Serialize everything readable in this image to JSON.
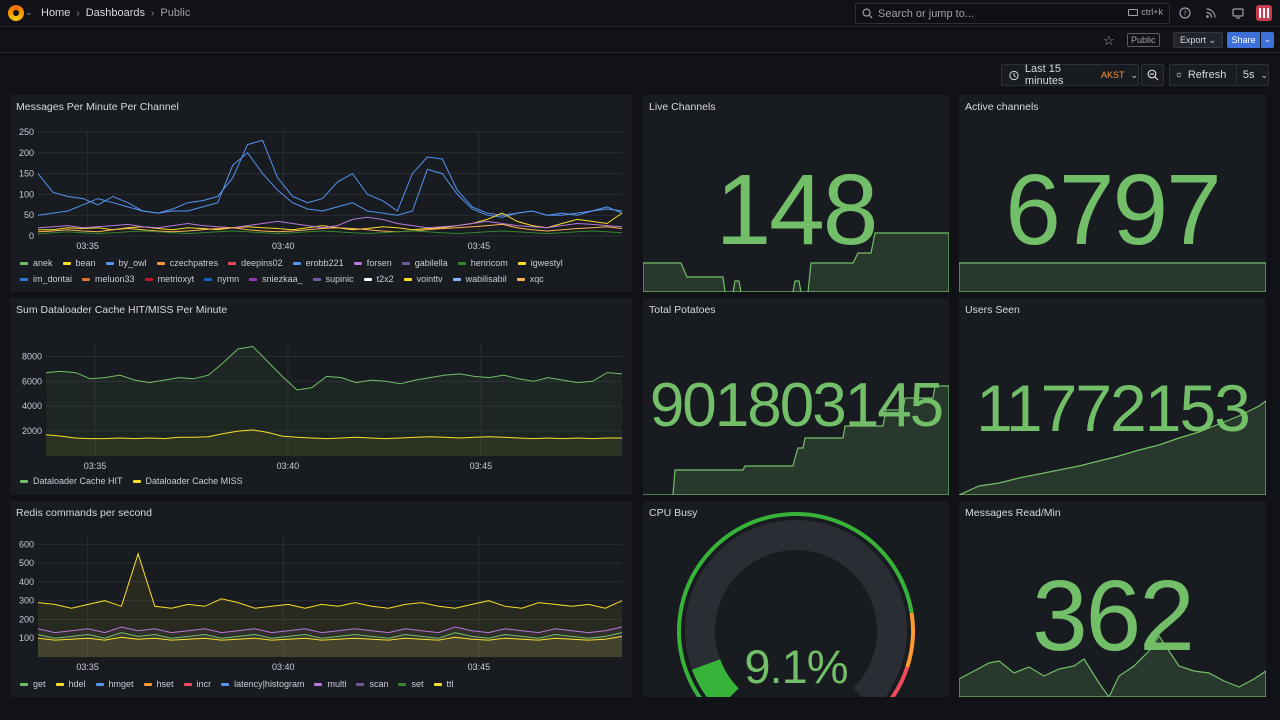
{
  "nav": {
    "breadcrumbs": [
      "Home",
      "Dashboards",
      "Public"
    ],
    "search_placeholder": "Search or jump to...",
    "search_shortcut": "ctrl+k"
  },
  "toolbar": {
    "public_tag": "Public",
    "export_label": "Export",
    "share_label": "Share",
    "time_range": "Last 15 minutes",
    "timezone": "AKST",
    "refresh_label": "Refresh",
    "refresh_interval": "5s"
  },
  "colors": {
    "stat_green": "#73bf69",
    "background": "#111217",
    "panel": "#181b1f"
  },
  "panels": {
    "messages": {
      "title": "Messages Per Minute Per Channel",
      "legend": [
        {
          "name": "anek",
          "color": "#73bf69"
        },
        {
          "name": "bean",
          "color": "#fade2a"
        },
        {
          "name": "by_owl",
          "color": "#5794f2"
        },
        {
          "name": "czechpatres",
          "color": "#ff9830"
        },
        {
          "name": "deepins02",
          "color": "#f2495c"
        },
        {
          "name": "erobb221",
          "color": "#5794f2"
        },
        {
          "name": "forsen",
          "color": "#b877d9"
        },
        {
          "name": "gabilella",
          "color": "#705da0"
        },
        {
          "name": "henricom",
          "color": "#37872d"
        },
        {
          "name": "igwestyl",
          "color": "#fade2a"
        },
        {
          "name": "im_dontai",
          "color": "#3274d9"
        },
        {
          "name": "meluon33",
          "color": "#e0752d"
        },
        {
          "name": "metrioxyt",
          "color": "#c4162a"
        },
        {
          "name": "nymn",
          "color": "#1f60c4"
        },
        {
          "name": "sniezkaa_",
          "color": "#8f3bb8"
        },
        {
          "name": "supinic",
          "color": "#705da0"
        },
        {
          "name": "t2x2",
          "color": "#ffffff"
        },
        {
          "name": "vointtv",
          "color": "#fade2a"
        },
        {
          "name": "wabilisabil",
          "color": "#8ab8ff"
        },
        {
          "name": "xqc",
          "color": "#ffb357"
        }
      ]
    },
    "cache": {
      "title": "Sum Dataloader Cache HIT/MISS Per Minute",
      "legend": [
        {
          "name": "Dataloader Cache HIT",
          "color": "#73bf69"
        },
        {
          "name": "Dataloader Cache MISS",
          "color": "#fade2a"
        }
      ]
    },
    "redis": {
      "title": "Redis commands per second",
      "legend": [
        {
          "name": "get",
          "color": "#73bf69"
        },
        {
          "name": "hdel",
          "color": "#fade2a"
        },
        {
          "name": "hmget",
          "color": "#5794f2"
        },
        {
          "name": "hset",
          "color": "#ff9830"
        },
        {
          "name": "incr",
          "color": "#f2495c"
        },
        {
          "name": "latency|histogram",
          "color": "#5794f2"
        },
        {
          "name": "multi",
          "color": "#b877d9"
        },
        {
          "name": "scan",
          "color": "#705da0"
        },
        {
          "name": "set",
          "color": "#37872d"
        },
        {
          "name": "ttl",
          "color": "#fade2a"
        }
      ]
    },
    "live_channels": {
      "title": "Live Channels",
      "value": "148"
    },
    "active_channels": {
      "title": "Active channels",
      "value": "6797"
    },
    "total_potatoes": {
      "title": "Total Potatoes",
      "value": "901803145"
    },
    "users_seen": {
      "title": "Users Seen",
      "value": "11772153"
    },
    "cpu_busy": {
      "title": "CPU Busy",
      "value": "9.1%",
      "percent": 9.1
    },
    "messages_read": {
      "title": "Messages Read/Min",
      "value": "362"
    }
  },
  "chart_data": [
    {
      "type": "line",
      "title": "Messages Per Minute Per Channel",
      "ylim": [
        0,
        250
      ],
      "yticks": [
        0,
        50,
        100,
        150,
        200,
        250
      ],
      "xticks": [
        "03:35",
        "03:40",
        "03:45"
      ],
      "series": [
        {
          "name": "by_owl",
          "color": "#5794f2",
          "values": [
            150,
            105,
            95,
            90,
            75,
            95,
            80,
            60,
            55,
            65,
            80,
            85,
            95,
            140,
            220,
            230,
            140,
            95,
            80,
            90,
            130,
            150,
            100,
            85,
            60,
            150,
            190,
            185,
            110,
            70,
            55,
            50,
            55,
            60,
            50,
            55,
            50,
            60,
            70,
            55
          ]
        },
        {
          "name": "erobb221",
          "color": "#5794f2",
          "values": [
            50,
            55,
            60,
            75,
            90,
            80,
            70,
            60,
            55,
            60,
            60,
            70,
            80,
            170,
            200,
            150,
            110,
            80,
            65,
            60,
            70,
            80,
            60,
            55,
            50,
            60,
            160,
            150,
            100,
            65,
            50,
            45,
            55,
            60,
            50,
            50,
            55,
            60,
            65,
            60
          ]
        },
        {
          "name": "bean",
          "color": "#fade2a",
          "values": [
            15,
            15,
            20,
            18,
            20,
            15,
            20,
            22,
            18,
            15,
            20,
            18,
            15,
            20,
            22,
            20,
            18,
            15,
            20,
            25,
            20,
            15,
            18,
            22,
            20,
            15,
            18,
            20,
            25,
            30,
            40,
            55,
            35,
            25,
            20,
            30,
            40,
            35,
            30,
            55
          ]
        },
        {
          "name": "forsen",
          "color": "#b877d9",
          "values": [
            20,
            22,
            25,
            20,
            22,
            25,
            28,
            22,
            20,
            25,
            30,
            25,
            22,
            20,
            25,
            30,
            35,
            30,
            25,
            20,
            25,
            40,
            45,
            40,
            30,
            25,
            20,
            22,
            25,
            30,
            35,
            30,
            25,
            22,
            20,
            25,
            30,
            28,
            25,
            22
          ]
        },
        {
          "name": "xqc",
          "color": "#ffb357",
          "values": [
            10,
            12,
            15,
            12,
            10,
            15,
            18,
            15,
            12,
            10,
            12,
            15,
            18,
            20,
            15,
            12,
            10,
            12,
            15,
            18,
            20,
            18,
            15,
            12,
            10,
            12,
            15,
            18,
            20,
            22,
            25,
            28,
            20,
            15,
            12,
            15,
            18,
            20,
            22,
            18
          ]
        },
        {
          "name": "henricom",
          "color": "#37872d",
          "values": [
            5,
            8,
            10,
            8,
            6,
            8,
            10,
            12,
            10,
            8,
            6,
            8,
            10,
            12,
            10,
            8,
            6,
            8,
            10,
            12,
            10,
            8,
            6,
            8,
            10,
            12,
            10,
            8,
            6,
            8,
            10,
            12,
            10,
            8,
            6,
            8,
            10,
            12,
            10,
            8
          ]
        }
      ]
    },
    {
      "type": "area",
      "title": "Sum Dataloader Cache HIT/MISS Per Minute",
      "ylim": [
        0,
        9000
      ],
      "yticks": [
        2000,
        4000,
        6000,
        8000
      ],
      "xticks": [
        "03:35",
        "03:40",
        "03:45"
      ],
      "series": [
        {
          "name": "Dataloader Cache HIT",
          "color": "#73bf69",
          "values": [
            6700,
            6800,
            6700,
            6200,
            6300,
            6500,
            6100,
            5900,
            6100,
            6300,
            6200,
            6500,
            7500,
            8600,
            8800,
            7600,
            6400,
            5300,
            5500,
            6400,
            6300,
            5900,
            6100,
            6000,
            5800,
            6100,
            6300,
            6500,
            6600,
            6400,
            6300,
            6500,
            6200,
            6000,
            6300,
            6100,
            5900,
            6000,
            6700,
            6600
          ]
        },
        {
          "name": "Dataloader Cache MISS",
          "color": "#fade2a",
          "values": [
            1700,
            1600,
            1450,
            1400,
            1400,
            1450,
            1400,
            1450,
            1400,
            1500,
            1500,
            1550,
            1800,
            2000,
            2100,
            1900,
            1600,
            1500,
            1450,
            1400,
            1450,
            1500,
            1450,
            1400,
            1450,
            1500,
            1550,
            1500,
            1450,
            1500,
            1550,
            1500,
            1450,
            1400,
            1450,
            1400,
            1450,
            1400,
            1450,
            1450
          ]
        }
      ]
    },
    {
      "type": "area",
      "title": "Redis commands per second",
      "ylim": [
        0,
        650
      ],
      "yticks": [
        100,
        200,
        300,
        400,
        500,
        600
      ],
      "xticks": [
        "03:35",
        "03:40",
        "03:45"
      ],
      "series": [
        {
          "name": "ttl",
          "color": "#fade2a",
          "values": [
            290,
            280,
            260,
            280,
            300,
            270,
            550,
            270,
            260,
            280,
            270,
            310,
            290,
            260,
            270,
            280,
            260,
            280,
            270,
            290,
            270,
            260,
            280,
            290,
            270,
            260,
            280,
            300,
            270,
            260,
            290,
            280,
            270,
            280,
            260,
            300
          ]
        },
        {
          "name": "multi",
          "color": "#b877d9",
          "values": [
            150,
            130,
            140,
            150,
            130,
            160,
            140,
            150,
            130,
            140,
            150,
            130,
            140,
            150,
            130,
            140,
            150,
            130,
            140,
            150,
            140,
            130,
            150,
            140,
            130,
            160,
            140,
            130,
            150,
            140,
            130,
            150,
            140,
            130,
            140,
            160
          ]
        },
        {
          "name": "get",
          "color": "#73bf69",
          "values": [
            120,
            100,
            110,
            120,
            100,
            130,
            110,
            120,
            100,
            110,
            120,
            100,
            110,
            120,
            100,
            110,
            120,
            100,
            110,
            120,
            110,
            100,
            120,
            110,
            100,
            130,
            110,
            100,
            120,
            110,
            100,
            120,
            110,
            100,
            110,
            130
          ]
        },
        {
          "name": "hdel",
          "color": "#fade2a",
          "values": [
            100,
            90,
            95,
            100,
            90,
            105,
            95,
            100,
            90,
            95,
            100,
            90,
            95,
            100,
            90,
            95,
            100,
            90,
            95,
            100,
            95,
            90,
            100,
            95,
            90,
            105,
            95,
            90,
            100,
            95,
            90,
            100,
            95,
            90,
            95,
            110
          ]
        }
      ]
    }
  ]
}
